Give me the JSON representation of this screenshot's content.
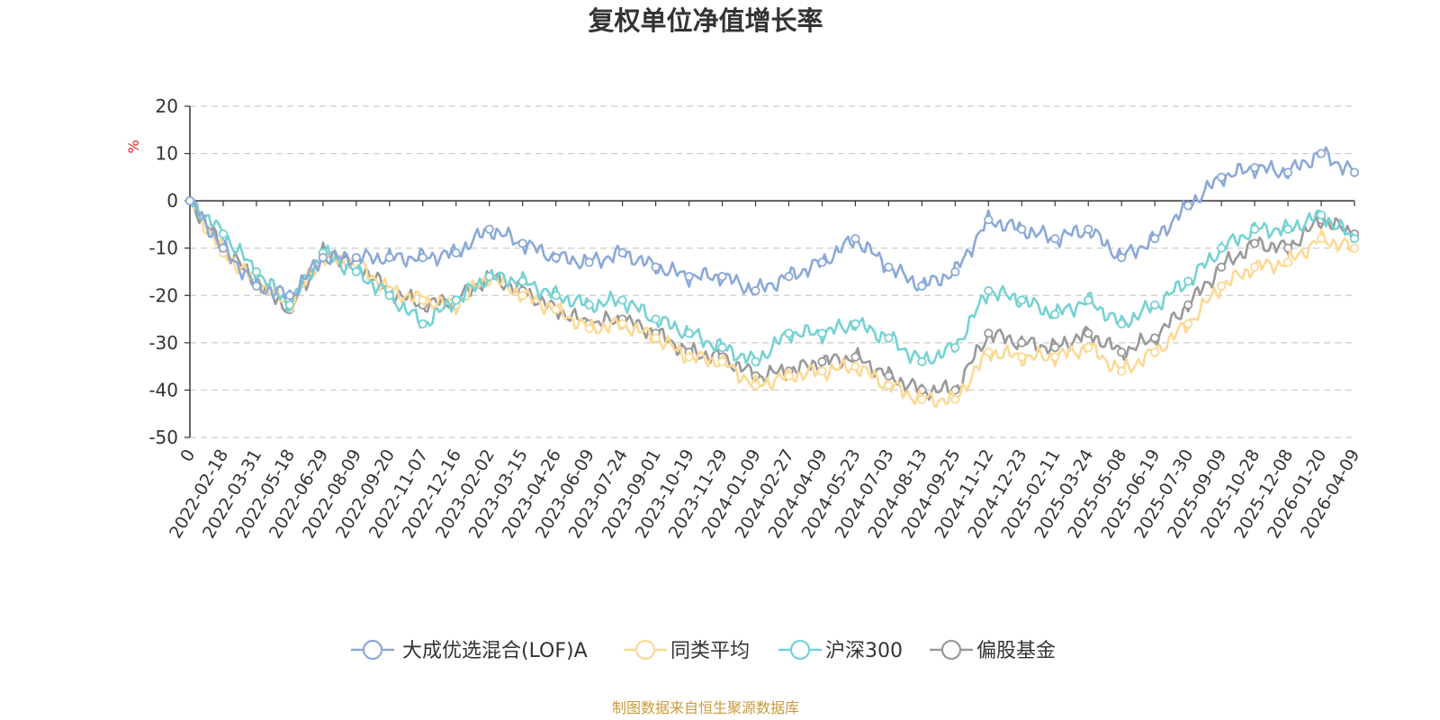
{
  "chart_data": {
    "type": "line",
    "title": "复权单位净值增长率",
    "ylabel": "%",
    "ylim": [
      -50,
      20
    ],
    "yticks": [
      20,
      10,
      0,
      -10,
      -20,
      -30,
      -40,
      -50
    ],
    "grid": true,
    "legend_position": "bottom",
    "x_labels": [
      "0",
      "2022-02-18",
      "2022-03-31",
      "2022-05-18",
      "2022-06-29",
      "2022-08-09",
      "2022-09-20",
      "2022-11-07",
      "2022-12-16",
      "2023-02-02",
      "2023-03-15",
      "2023-04-26",
      "2023-06-09",
      "2023-07-24",
      "2023-09-01",
      "2023-10-19",
      "2023-11-29",
      "2024-01-09",
      "2024-02-27",
      "2024-04-09",
      "2024-05-23",
      "2024-07-03",
      "2024-08-13",
      "2024-09-25",
      "2024-11-12",
      "2024-12-23",
      "2025-02-11",
      "2025-03-24",
      "2025-05-08",
      "2025-06-19",
      "2025-07-30",
      "2025-09-09",
      "2025-10-28",
      "2025-12-08",
      "2026-01-20",
      "2026-04-09"
    ],
    "series": [
      {
        "name": "大成优选混合(LOF)A",
        "color": "#8ba9d8",
        "values": [
          0,
          -10,
          -18,
          -20,
          -12,
          -12,
          -12,
          -12,
          -11,
          -6,
          -9,
          -12,
          -13,
          -11,
          -14,
          -16,
          -16,
          -19,
          -16,
          -13,
          -8,
          -14,
          -18,
          -15,
          -4,
          -6,
          -8,
          -6,
          -12,
          -8,
          -1,
          5,
          7,
          6,
          10,
          6
        ]
      },
      {
        "name": "同类平均",
        "color": "#fcd994",
        "values": [
          0,
          -11,
          -17,
          -22,
          -12,
          -13,
          -19,
          -21,
          -22,
          -16,
          -20,
          -23,
          -27,
          -26,
          -29,
          -33,
          -34,
          -39,
          -37,
          -36,
          -35,
          -39,
          -42,
          -42,
          -32,
          -33,
          -33,
          -31,
          -36,
          -32,
          -26,
          -18,
          -14,
          -13,
          -8,
          -10
        ]
      },
      {
        "name": "沪深300",
        "color": "#76d2d3",
        "values": [
          0,
          -7,
          -15,
          -22,
          -11,
          -15,
          -20,
          -26,
          -21,
          -16,
          -17,
          -20,
          -22,
          -21,
          -25,
          -28,
          -31,
          -34,
          -28,
          -28,
          -26,
          -29,
          -34,
          -31,
          -19,
          -21,
          -24,
          -21,
          -26,
          -22,
          -17,
          -10,
          -6,
          -6,
          -3,
          -8
        ]
      },
      {
        "name": "偏股基金",
        "color": "#999999",
        "values": [
          0,
          -10,
          -17,
          -23,
          -11,
          -13,
          -19,
          -22,
          -21,
          -16,
          -19,
          -23,
          -26,
          -25,
          -28,
          -32,
          -33,
          -37,
          -36,
          -34,
          -33,
          -37,
          -40,
          -40,
          -28,
          -30,
          -31,
          -28,
          -32,
          -29,
          -22,
          -14,
          -9,
          -10,
          -4,
          -7
        ]
      }
    ]
  },
  "source": "制图数据来自恒生聚源数据库"
}
